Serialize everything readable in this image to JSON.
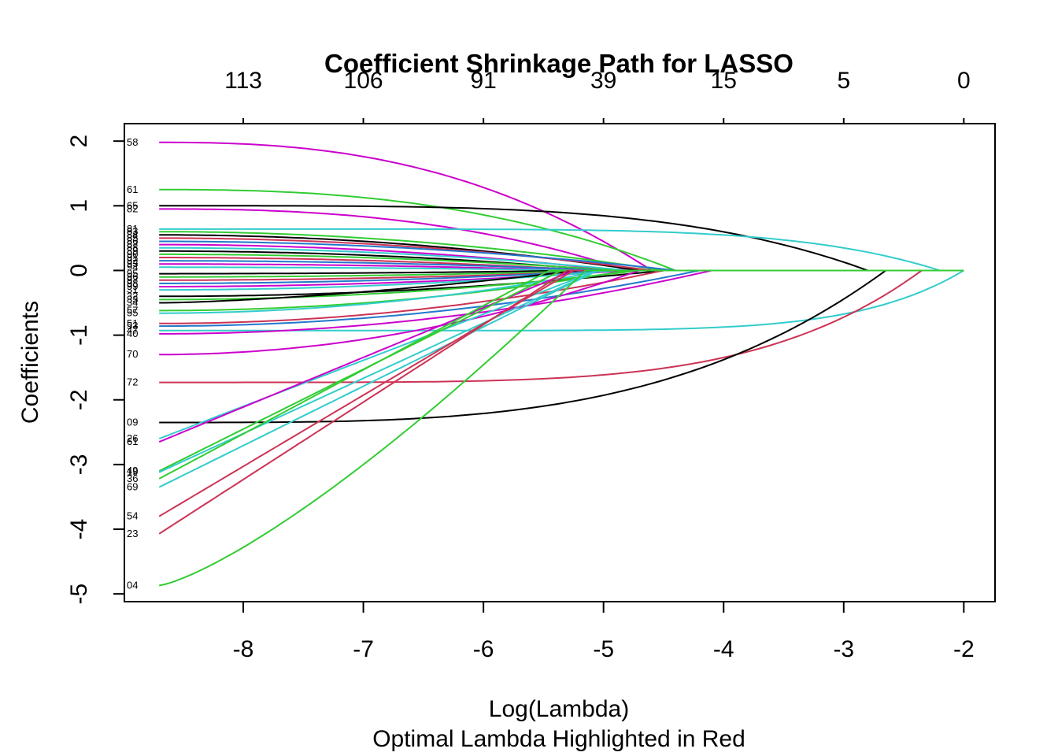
{
  "chart_data": {
    "type": "line",
    "title": "Coefficient Shrinkage Path for LASSO",
    "xlabel": "Log(Lambda)",
    "subtitle": "Optimal Lambda Highlighted in Red",
    "ylabel": "Coefficients",
    "xlim": [
      -8.99,
      -1.74
    ],
    "ylim": [
      -5.12,
      2.27
    ],
    "x_ticks": [
      "-8",
      "-7",
      "-6",
      "-5",
      "-4",
      "-3",
      "-2"
    ],
    "x_tick_values": [
      -8,
      -7,
      -6,
      -5,
      -4,
      -3,
      -2
    ],
    "y_ticks": [
      "2",
      "1",
      "0",
      "-1",
      "-2",
      "-3",
      "-4",
      "-5"
    ],
    "y_tick_values": [
      2,
      1,
      0,
      -1,
      -2,
      -3,
      -4,
      -5
    ],
    "top_ticks": [
      "113",
      "106",
      "91",
      "39",
      "15",
      "5",
      "0"
    ],
    "top_tick_values": [
      -8,
      -7,
      -6,
      -5,
      -4,
      -3,
      -2
    ],
    "series": [
      {
        "name": "58",
        "color": "#CC00CC",
        "start": 1.98,
        "end": -4.6,
        "shape": 2.5
      },
      {
        "name": "61",
        "color": "#33CC33",
        "start": 1.25,
        "end": -4.4,
        "shape": 2.5
      },
      {
        "name": "65",
        "color": "#000000",
        "start": 1.0,
        "end": -2.8,
        "shape": 4
      },
      {
        "name": "82",
        "color": "#CC00CC",
        "start": 0.95,
        "end": -4.8,
        "shape": 2.5
      },
      {
        "name": "81",
        "color": "#33CCCC",
        "start": 0.64,
        "end": -2.2,
        "shape": 6
      },
      {
        "name": "83",
        "color": "#33CC33",
        "start": 0.6,
        "end": -4.5,
        "shape": 2
      },
      {
        "name": "84",
        "color": "#000000",
        "start": 0.55,
        "end": -4.7,
        "shape": 2
      },
      {
        "name": "85",
        "color": "#CC3355",
        "start": 0.5,
        "end": -4.6,
        "shape": 2
      },
      {
        "name": "86",
        "color": "#2277CC",
        "start": 0.45,
        "end": -4.4,
        "shape": 2
      },
      {
        "name": "87",
        "color": "#CC00CC",
        "start": 0.4,
        "end": -4.9,
        "shape": 2
      },
      {
        "name": "88",
        "color": "#33CCCC",
        "start": 0.35,
        "end": -4.8,
        "shape": 2
      },
      {
        "name": "89",
        "color": "#000000",
        "start": 0.3,
        "end": -5.0,
        "shape": 2
      },
      {
        "name": "90",
        "color": "#33CC33",
        "start": 0.25,
        "end": -4.9,
        "shape": 2
      },
      {
        "name": "91",
        "color": "#CC3355",
        "start": 0.2,
        "end": -5.1,
        "shape": 2
      },
      {
        "name": "92",
        "color": "#2277CC",
        "start": 0.15,
        "end": -5.0,
        "shape": 2
      },
      {
        "name": "93",
        "color": "#CC00CC",
        "start": 0.1,
        "end": -5.2,
        "shape": 2
      },
      {
        "name": "94",
        "color": "#33CCCC",
        "start": 0.05,
        "end": -5.1,
        "shape": 2
      },
      {
        "name": "95",
        "color": "#000000",
        "start": -0.05,
        "end": -5.2,
        "shape": 2
      },
      {
        "name": "96",
        "color": "#33CC33",
        "start": -0.1,
        "end": -5.0,
        "shape": 2
      },
      {
        "name": "97",
        "color": "#CC3355",
        "start": -0.15,
        "end": -4.9,
        "shape": 2
      },
      {
        "name": "98",
        "color": "#2277CC",
        "start": -0.2,
        "end": -5.0,
        "shape": 2
      },
      {
        "name": "99",
        "color": "#CC00CC",
        "start": -0.25,
        "end": -4.8,
        "shape": 2
      },
      {
        "name": "31",
        "color": "#33CCCC",
        "start": -0.3,
        "end": -4.9,
        "shape": 2
      },
      {
        "name": "32",
        "color": "#000000",
        "start": -0.4,
        "end": -4.5,
        "shape": 2
      },
      {
        "name": "33",
        "color": "#33CC33",
        "start": -0.45,
        "end": -4.7,
        "shape": 2
      },
      {
        "name": "34",
        "color": "#000000",
        "start": -0.5,
        "end": -5.2,
        "shape": 1.5
      },
      {
        "name": "57",
        "color": "#33CC33",
        "start": -0.62,
        "end": -4.8,
        "shape": 2
      },
      {
        "name": "55",
        "color": "#33CCCC",
        "start": -0.66,
        "end": -5.0,
        "shape": 2
      },
      {
        "name": "51",
        "color": "#CC3355",
        "start": -0.82,
        "end": -4.5,
        "shape": 2
      },
      {
        "name": "53",
        "color": "#2277CC",
        "start": -0.86,
        "end": -4.2,
        "shape": 2
      },
      {
        "name": "47",
        "color": "#33CCCC",
        "start": -0.93,
        "end": -2.0,
        "shape": 8
      },
      {
        "name": "40",
        "color": "#CC00CC",
        "start": -0.98,
        "end": -4.1,
        "shape": 2
      },
      {
        "name": "70",
        "color": "#CC00CC",
        "start": -1.3,
        "end": -4.7,
        "shape": 2
      },
      {
        "name": "72",
        "color": "#CC3355",
        "start": -1.73,
        "end": -2.35,
        "shape": 5
      },
      {
        "name": "09",
        "color": "#000000",
        "start": -2.35,
        "end": -2.65,
        "shape": 3.5
      },
      {
        "name": "26",
        "color": "#33CCCC",
        "start": -2.6,
        "end": -5.05,
        "shape": 1
      },
      {
        "name": "61",
        "color": "#CC00CC",
        "start": -2.65,
        "end": -5.25,
        "shape": 1
      },
      {
        "name": "49",
        "color": "#33CC33",
        "start": -3.1,
        "end": -5.35,
        "shape": 1
      },
      {
        "name": "19",
        "color": "#33CCCC",
        "start": -3.12,
        "end": -5.05,
        "shape": 1
      },
      {
        "name": "36",
        "color": "#33CC33",
        "start": -3.22,
        "end": -5.45,
        "shape": 1
      },
      {
        "name": "69",
        "color": "#33CCCC",
        "start": -3.35,
        "end": -5.05,
        "shape": 1
      },
      {
        "name": "54",
        "color": "#CC3355",
        "start": -3.8,
        "end": -5.25,
        "shape": 1
      },
      {
        "name": "23",
        "color": "#CC3355",
        "start": -4.07,
        "end": -5.3,
        "shape": 1
      },
      {
        "name": "04",
        "color": "#33CC33",
        "start": -4.87,
        "end": -5.15,
        "shape": 1.3
      }
    ]
  }
}
